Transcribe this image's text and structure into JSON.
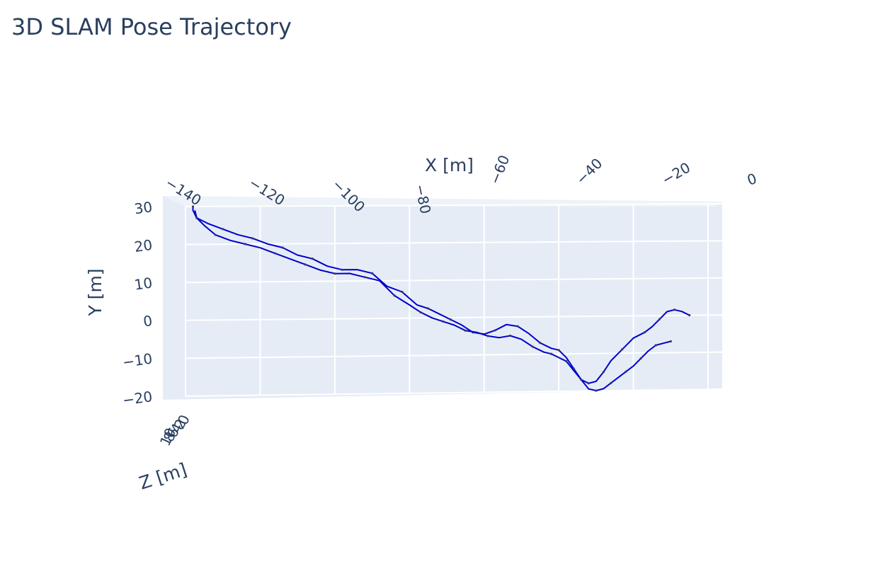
{
  "chart_data": {
    "type": "line3d",
    "title": "3D SLAM Pose Trajectory",
    "xlabel": "X [m]",
    "ylabel": "Y [m]",
    "zlabel": "Z [m]",
    "xlim": [
      -140,
      0
    ],
    "ylim": [
      -20,
      30
    ],
    "x_ticks": [
      "−140",
      "−120",
      "−100",
      "−80",
      "−60",
      "−40",
      "−20",
      "0"
    ],
    "y_ticks": [
      "30",
      "20",
      "10",
      "0",
      "−10",
      "−20"
    ],
    "z_ticks": [
      "10",
      "8",
      "6",
      "4",
      "2",
      "0"
    ],
    "grid": true,
    "line_color": "#0000cc",
    "background_color": "#e5ecf6",
    "series": [
      {
        "x": [
          -5,
          -7,
          -9,
          -11,
          -13,
          -15,
          -17,
          -20,
          -23,
          -26,
          -28,
          -30,
          -32,
          -34,
          -36,
          -38,
          -40,
          -42,
          -45,
          -48,
          -51,
          -54,
          -57,
          -60,
          -63,
          -66,
          -69,
          -72,
          -75,
          -78,
          -82,
          -86,
          -90,
          -94,
          -98,
          -102,
          -106,
          -110,
          -114,
          -118,
          -122,
          -126,
          -130,
          -134,
          -137,
          -138,
          -138
        ],
        "y": [
          0,
          1,
          1.5,
          1,
          -1,
          -3,
          -4.5,
          -6,
          -9,
          -12,
          -15,
          -17.5,
          -18,
          -17,
          -14,
          -11,
          -9,
          -8.5,
          -7,
          -4.5,
          -2.5,
          -2,
          -3.5,
          -4.5,
          -4,
          -2,
          -0.5,
          1,
          2.5,
          3.5,
          7,
          8.5,
          12,
          13,
          13,
          14,
          16,
          17,
          19,
          20,
          21.5,
          22.5,
          24,
          25.5,
          27,
          29,
          30
        ]
      },
      {
        "x": [
          -10,
          -12,
          -14,
          -16,
          -18,
          -20,
          -22,
          -24,
          -26,
          -28,
          -30,
          -32,
          -34,
          -36,
          -38,
          -40,
          -42,
          -44,
          -47,
          -50,
          -53,
          -56,
          -59,
          -62,
          -65,
          -68,
          -71,
          -74,
          -77,
          -80,
          -84,
          -88,
          -92,
          -96,
          -100,
          -104,
          -108,
          -112,
          -116,
          -120,
          -124,
          -128,
          -132,
          -135,
          -137,
          -137.5
        ],
        "y": [
          -7,
          -7.5,
          -8,
          -9.5,
          -11.5,
          -13.5,
          -15,
          -16.5,
          -18,
          -19.5,
          -20,
          -19.5,
          -17,
          -14.5,
          -12,
          -11,
          -10,
          -9.5,
          -8,
          -6,
          -5,
          -5.5,
          -5,
          -4,
          -3.5,
          -2,
          -1,
          0,
          1.5,
          3.5,
          6,
          10,
          11,
          12,
          12,
          13,
          14.5,
          16,
          17.5,
          19,
          20,
          21,
          22.5,
          25,
          27,
          29
        ]
      }
    ]
  }
}
